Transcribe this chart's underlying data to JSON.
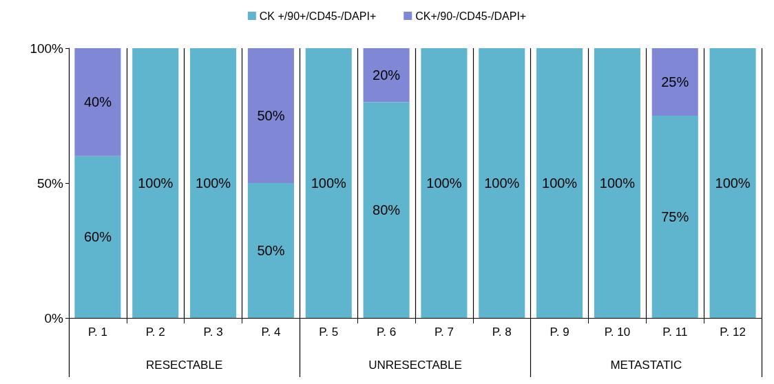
{
  "chart_data": {
    "type": "bar",
    "stacked": true,
    "categories": [
      "P. 1",
      "P. 2",
      "P. 3",
      "P. 4",
      "P. 5",
      "P. 6",
      "P. 7",
      "P. 8",
      "P. 9",
      "P. 10",
      "P. 11",
      "P. 12"
    ],
    "series": [
      {
        "name": "CK +/90+/CD45-/DAPI+",
        "color": "#5fb5ce",
        "values": [
          60,
          100,
          100,
          50,
          100,
          80,
          100,
          100,
          100,
          100,
          75,
          100
        ],
        "value_labels": [
          "60%",
          "100%",
          "100%",
          "50%",
          "100%",
          "80%",
          "100%",
          "100%",
          "100%",
          "100%",
          "75%",
          "100%"
        ]
      },
      {
        "name": "CK+/90-/CD45-/DAPI+",
        "color": "#8088d6",
        "values": [
          40,
          0,
          0,
          50,
          0,
          20,
          0,
          0,
          0,
          0,
          25,
          0
        ],
        "value_labels": [
          "40%",
          null,
          null,
          "50%",
          null,
          "20%",
          null,
          null,
          null,
          null,
          "25%",
          null
        ]
      }
    ],
    "ylim": [
      0,
      100
    ],
    "yticks": [
      {
        "value": 0,
        "label": "0%"
      },
      {
        "value": 50,
        "label": "50%"
      },
      {
        "value": 100,
        "label": "100%"
      }
    ],
    "grid": "x",
    "legend": "top",
    "annotations": [
      "RESECTABLE",
      "UNRESECTABLE",
      "METASTATIC"
    ]
  }
}
